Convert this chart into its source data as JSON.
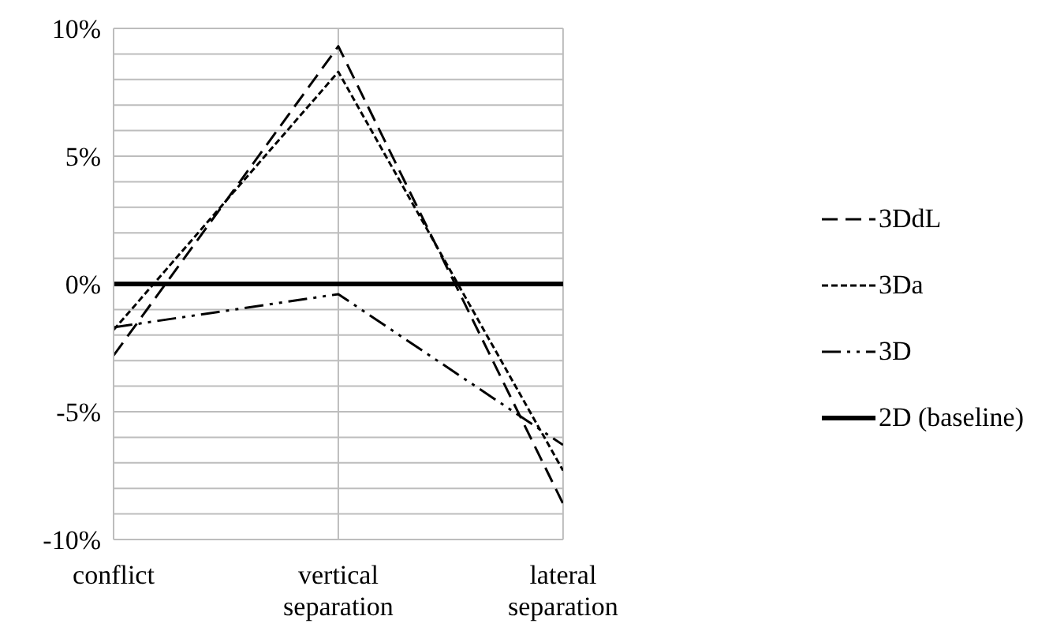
{
  "chart_data": {
    "type": "line",
    "categories": [
      "conflict",
      "vertical separation",
      "lateral separation"
    ],
    "series": [
      {
        "name": "3DdL",
        "color": "#000000",
        "line_style": "dashed",
        "values": [
          -2.8,
          9.3,
          -8.6
        ]
      },
      {
        "name": "3Da",
        "color": "#000000",
        "line_style": "dotted",
        "values": [
          -1.8,
          8.3,
          -7.3
        ]
      },
      {
        "name": "3D",
        "color": "#000000",
        "line_style": "dashdot",
        "values": [
          -1.7,
          -0.4,
          -6.3
        ]
      },
      {
        "name": "2D (baseline)",
        "color": "#000000",
        "line_style": "solid",
        "values": [
          0,
          0,
          0
        ]
      }
    ],
    "ylim": [
      -10,
      10
    ],
    "yticks": [
      {
        "value": -10,
        "label": "-10%"
      },
      {
        "value": -9,
        "label": null
      },
      {
        "value": -8,
        "label": null
      },
      {
        "value": -7,
        "label": null
      },
      {
        "value": -6,
        "label": null
      },
      {
        "value": -5,
        "label": "-5%"
      },
      {
        "value": -4,
        "label": null
      },
      {
        "value": -3,
        "label": null
      },
      {
        "value": -2,
        "label": null
      },
      {
        "value": -1,
        "label": null
      },
      {
        "value": 0,
        "label": "0%"
      },
      {
        "value": 1,
        "label": null
      },
      {
        "value": 2,
        "label": null
      },
      {
        "value": 3,
        "label": null
      },
      {
        "value": 4,
        "label": null
      },
      {
        "value": 5,
        "label": "5%"
      },
      {
        "value": 6,
        "label": null
      },
      {
        "value": 7,
        "label": null
      },
      {
        "value": 8,
        "label": null
      },
      {
        "value": 9,
        "label": null
      },
      {
        "value": 10,
        "label": "10%"
      }
    ],
    "grid": true,
    "legend": "right",
    "marker": "none"
  }
}
